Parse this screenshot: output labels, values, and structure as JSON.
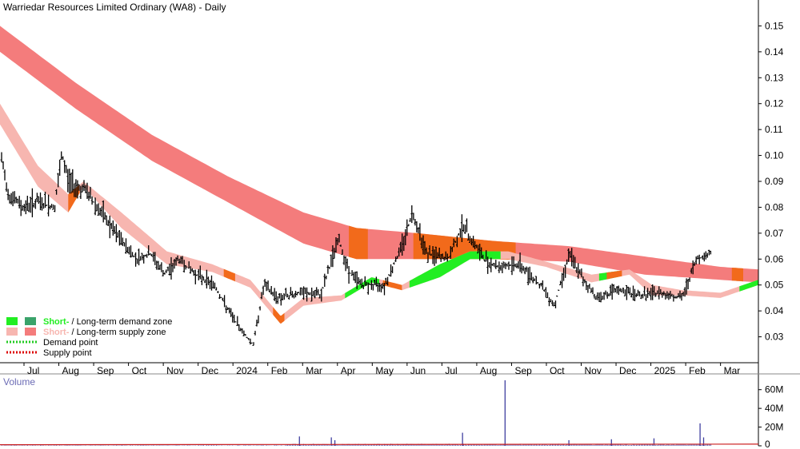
{
  "chart_data": {
    "type": "candlestick",
    "title": "Warriedar Resources Limited Ordinary (WA8) - Daily",
    "ylim": [
      0.02,
      0.16
    ],
    "y_ticks": [
      0.03,
      0.04,
      0.05,
      0.06,
      0.07,
      0.08,
      0.09,
      0.1,
      0.11,
      0.12,
      0.13,
      0.14,
      0.15
    ],
    "y_tick_labels": [
      "0.03",
      "0.04",
      "0.05",
      "0.06",
      "0.07",
      "0.08",
      "0.09",
      "0.10",
      "0.11",
      "0.12",
      "0.13",
      "0.14",
      "0.15"
    ],
    "x_tick_labels": [
      "Jul",
      "Aug",
      "Sep",
      "Oct",
      "Nov",
      "Dec",
      "2024",
      "Feb",
      "Mar",
      "Apr",
      "May",
      "Jun",
      "Jul",
      "Aug",
      "Sep",
      "Oct",
      "Nov",
      "Dec",
      "2025",
      "Feb",
      "Mar"
    ],
    "long_term_zone": [
      {
        "t": 0,
        "upper": 0.15,
        "lower": 0.14
      },
      {
        "t": 0.1,
        "upper": 0.128,
        "lower": 0.118
      },
      {
        "t": 0.2,
        "upper": 0.108,
        "lower": 0.098
      },
      {
        "t": 0.3,
        "upper": 0.092,
        "lower": 0.082
      },
      {
        "t": 0.4,
        "upper": 0.078,
        "lower": 0.066
      },
      {
        "t": 0.47,
        "upper": 0.072,
        "lower": 0.06
      },
      {
        "t": 0.55,
        "upper": 0.07,
        "lower": 0.06
      },
      {
        "t": 0.65,
        "upper": 0.067,
        "lower": 0.06
      },
      {
        "t": 0.75,
        "upper": 0.065,
        "lower": 0.059
      },
      {
        "t": 0.85,
        "upper": 0.061,
        "lower": 0.054
      },
      {
        "t": 0.95,
        "upper": 0.057,
        "lower": 0.052
      },
      {
        "t": 1,
        "upper": 0.056,
        "lower": 0.051
      }
    ],
    "short_term_zone": [
      {
        "t": 0,
        "upper": 0.12,
        "lower": 0.112
      },
      {
        "t": 0.05,
        "upper": 0.096,
        "lower": 0.088
      },
      {
        "t": 0.09,
        "upper": 0.085,
        "lower": 0.078
      },
      {
        "t": 0.11,
        "upper": 0.09,
        "lower": 0.088
      },
      {
        "t": 0.16,
        "upper": 0.078,
        "lower": 0.072
      },
      {
        "t": 0.22,
        "upper": 0.063,
        "lower": 0.058
      },
      {
        "t": 0.28,
        "upper": 0.058,
        "lower": 0.055
      },
      {
        "t": 0.33,
        "upper": 0.052,
        "lower": 0.049
      },
      {
        "t": 0.37,
        "upper": 0.038,
        "lower": 0.035
      },
      {
        "t": 0.4,
        "upper": 0.045,
        "lower": 0.042
      },
      {
        "t": 0.45,
        "upper": 0.046,
        "lower": 0.044
      },
      {
        "t": 0.49,
        "upper": 0.053,
        "lower": 0.051
      },
      {
        "t": 0.53,
        "upper": 0.05,
        "lower": 0.048
      },
      {
        "t": 0.58,
        "upper": 0.058,
        "lower": 0.053
      },
      {
        "t": 0.62,
        "upper": 0.063,
        "lower": 0.06
      },
      {
        "t": 0.67,
        "upper": 0.063,
        "lower": 0.06
      },
      {
        "t": 0.72,
        "upper": 0.059,
        "lower": 0.057
      },
      {
        "t": 0.78,
        "upper": 0.054,
        "lower": 0.051
      },
      {
        "t": 0.83,
        "upper": 0.056,
        "lower": 0.054
      },
      {
        "t": 0.86,
        "upper": 0.05,
        "lower": 0.046
      },
      {
        "t": 0.9,
        "upper": 0.048,
        "lower": 0.046
      },
      {
        "t": 0.95,
        "upper": 0.047,
        "lower": 0.045
      },
      {
        "t": 1,
        "upper": 0.052,
        "lower": 0.05
      }
    ],
    "price_path": [
      {
        "t": 0,
        "v": 0.098
      },
      {
        "t": 0.01,
        "v": 0.085
      },
      {
        "t": 0.03,
        "v": 0.08
      },
      {
        "t": 0.05,
        "v": 0.082
      },
      {
        "t": 0.075,
        "v": 0.08
      },
      {
        "t": 0.085,
        "v": 0.1
      },
      {
        "t": 0.095,
        "v": 0.09
      },
      {
        "t": 0.12,
        "v": 0.086
      },
      {
        "t": 0.14,
        "v": 0.078
      },
      {
        "t": 0.16,
        "v": 0.07
      },
      {
        "t": 0.19,
        "v": 0.06
      },
      {
        "t": 0.21,
        "v": 0.062
      },
      {
        "t": 0.23,
        "v": 0.054
      },
      {
        "t": 0.25,
        "v": 0.06
      },
      {
        "t": 0.27,
        "v": 0.055
      },
      {
        "t": 0.3,
        "v": 0.05
      },
      {
        "t": 0.32,
        "v": 0.04
      },
      {
        "t": 0.34,
        "v": 0.032
      },
      {
        "t": 0.355,
        "v": 0.027
      },
      {
        "t": 0.37,
        "v": 0.05
      },
      {
        "t": 0.39,
        "v": 0.045
      },
      {
        "t": 0.42,
        "v": 0.047
      },
      {
        "t": 0.45,
        "v": 0.046
      },
      {
        "t": 0.475,
        "v": 0.068
      },
      {
        "t": 0.49,
        "v": 0.055
      },
      {
        "t": 0.51,
        "v": 0.05
      },
      {
        "t": 0.54,
        "v": 0.05
      },
      {
        "t": 0.56,
        "v": 0.062
      },
      {
        "t": 0.58,
        "v": 0.078
      },
      {
        "t": 0.6,
        "v": 0.062
      },
      {
        "t": 0.63,
        "v": 0.06
      },
      {
        "t": 0.65,
        "v": 0.073
      },
      {
        "t": 0.68,
        "v": 0.06
      },
      {
        "t": 0.7,
        "v": 0.057
      },
      {
        "t": 0.73,
        "v": 0.058
      },
      {
        "t": 0.76,
        "v": 0.05
      },
      {
        "t": 0.78,
        "v": 0.042
      },
      {
        "t": 0.8,
        "v": 0.062
      },
      {
        "t": 0.82,
        "v": 0.052
      },
      {
        "t": 0.84,
        "v": 0.045
      },
      {
        "t": 0.87,
        "v": 0.048
      },
      {
        "t": 0.9,
        "v": 0.046
      },
      {
        "t": 0.93,
        "v": 0.047
      },
      {
        "t": 0.96,
        "v": 0.045
      },
      {
        "t": 0.98,
        "v": 0.06
      },
      {
        "t": 1,
        "v": 0.062
      }
    ],
    "volume_title": "Volume",
    "volume_ylim": [
      0,
      70000000
    ],
    "volume_ticks": [
      0,
      20000000,
      40000000,
      60000000
    ],
    "volume_tick_labels": [
      "0",
      "20M",
      "40M",
      "60M"
    ],
    "volume_spikes": [
      {
        "t": 0.42,
        "v": 10000000
      },
      {
        "t": 0.465,
        "v": 9000000
      },
      {
        "t": 0.47,
        "v": 6000000
      },
      {
        "t": 0.65,
        "v": 14000000
      },
      {
        "t": 0.71,
        "v": 70000000
      },
      {
        "t": 0.8,
        "v": 6000000
      },
      {
        "t": 0.86,
        "v": 7000000
      },
      {
        "t": 0.92,
        "v": 8000000
      },
      {
        "t": 0.985,
        "v": 24000000
      },
      {
        "t": 0.99,
        "v": 9000000
      }
    ],
    "colors": {
      "long_supply": "#f47c7c",
      "short_supply": "#f7b6b0",
      "long_demand": "#3aa36a",
      "short_demand": "#22ee22",
      "supply_point": "#dd0000",
      "demand_point": "#22cc22",
      "overlap": "#f26a1b",
      "price_bar": "#000000",
      "volume_bar": "#4040a0",
      "volume_line": "#cc2222",
      "axis": "#000000"
    },
    "legend": [
      {
        "label_a": "Short-",
        "label_sep": " / ",
        "label_b": "Long-term demand zone",
        "colors": [
          "#22ee22",
          "#3aa36a"
        ],
        "style": "box"
      },
      {
        "label_a": "Short-",
        "label_sep": " / ",
        "label_b": "Long-term supply zone",
        "colors": [
          "#f7b6b0",
          "#f47c7c"
        ],
        "style": "box"
      },
      {
        "label": "Demand point",
        "color": "#22cc22",
        "style": "dotted"
      },
      {
        "label": "Supply point",
        "color": "#dd0000",
        "style": "dotted"
      }
    ]
  }
}
